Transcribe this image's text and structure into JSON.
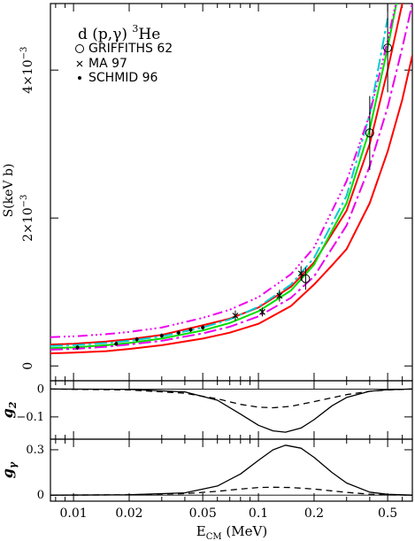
{
  "chart_data": [
    {
      "type": "line",
      "title": "d (p,γ) ³He",
      "title_parts": {
        "reaction": "d (p,γ)",
        "mass_number": "3",
        "nucleus": "He"
      },
      "ylabel": "S(keV b)",
      "yticks": [
        {
          "value": 0,
          "label": "0"
        },
        {
          "value": 0.002,
          "label": "2×10⁻³",
          "base": "2×10",
          "exp": "−3"
        },
        {
          "value": 0.004,
          "label": "4×10⁻³",
          "base": "4×10",
          "exp": "−3"
        }
      ],
      "xscale": "log",
      "xlim": [
        0.0075,
        0.68
      ],
      "ylim": [
        -0.0002,
        0.0049
      ],
      "legend_placement": "top-left",
      "legend": [
        {
          "marker": "circle",
          "label": "GRIFFITHS 62"
        },
        {
          "marker": "cross",
          "label": "MA 97"
        },
        {
          "marker": "dot",
          "label": "SCHMID 96"
        }
      ],
      "series": [
        {
          "style": "solid",
          "color": "#ff0000",
          "width": 2,
          "x": [
            0.0075,
            0.01,
            0.015,
            0.02,
            0.03,
            0.05,
            0.07,
            0.1,
            0.15,
            0.2,
            0.3,
            0.4,
            0.5,
            0.6,
            0.68
          ],
          "y": [
            0.00029,
            0.0003,
            0.00033,
            0.00036,
            0.00042,
            0.00055,
            0.00064,
            0.00079,
            0.00107,
            0.0014,
            0.0021,
            0.003,
            0.004,
            0.0049,
            0.0056
          ]
        },
        {
          "style": "solid",
          "color": "#ff0000",
          "width": 2,
          "x": [
            0.0075,
            0.01,
            0.015,
            0.02,
            0.03,
            0.05,
            0.07,
            0.1,
            0.15,
            0.2,
            0.25,
            0.3,
            0.4,
            0.5,
            0.6,
            0.68
          ],
          "y": [
            0.00017,
            0.00018,
            0.0002,
            0.00023,
            0.00028,
            0.00037,
            0.00045,
            0.00057,
            0.00081,
            0.0011,
            0.00136,
            0.00158,
            0.0022,
            0.0029,
            0.0036,
            0.0042
          ]
        },
        {
          "style": "solid",
          "color": "#00dd00",
          "width": 2,
          "x": [
            0.0075,
            0.01,
            0.015,
            0.02,
            0.03,
            0.05,
            0.07,
            0.1,
            0.15,
            0.2,
            0.3,
            0.4,
            0.5,
            0.6
          ],
          "y": [
            0.00024,
            0.00025,
            0.00028,
            0.00031,
            0.00037,
            0.00048,
            0.00058,
            0.00074,
            0.00102,
            0.00137,
            0.0022,
            0.0032,
            0.0043,
            0.0053
          ]
        },
        {
          "style": "dashdot",
          "color": "#00cccc",
          "width": 2,
          "x": [
            0.0075,
            0.01,
            0.015,
            0.02,
            0.03,
            0.05,
            0.07,
            0.1,
            0.15,
            0.2,
            0.3,
            0.4,
            0.5
          ],
          "y": [
            0.00027,
            0.00028,
            0.00031,
            0.00034,
            0.0004,
            0.00052,
            0.00063,
            0.0008,
            0.0011,
            0.00146,
            0.0023,
            0.0034,
            0.0047
          ]
        },
        {
          "style": "dashdot",
          "color": "#ee00ee",
          "width": 2,
          "x": [
            0.0075,
            0.01,
            0.015,
            0.02,
            0.03,
            0.05,
            0.07,
            0.1,
            0.15,
            0.2,
            0.3,
            0.4,
            0.5,
            0.6,
            0.68
          ],
          "y": [
            0.00022,
            0.00023,
            0.00026,
            0.00029,
            0.00034,
            0.00044,
            0.00053,
            0.00067,
            0.00092,
            0.00121,
            0.0019,
            0.0027,
            0.0035,
            0.0043,
            0.0049
          ]
        },
        {
          "style": "dotted-dash",
          "color": "#ee00ee",
          "width": 2,
          "x": [
            0.0075,
            0.01,
            0.015,
            0.02,
            0.03,
            0.05,
            0.07,
            0.1,
            0.15,
            0.2,
            0.3,
            0.4,
            0.5,
            0.6
          ],
          "y": [
            0.00039,
            0.0004,
            0.00043,
            0.00046,
            0.00052,
            0.00065,
            0.00076,
            0.00093,
            0.00124,
            0.0016,
            0.0025,
            0.0034,
            0.0044,
            0.0053
          ]
        }
      ],
      "points": {
        "griffiths": [
          {
            "x": 0.4,
            "y": 0.00315,
            "err": 0.0005
          },
          {
            "x": 0.5,
            "y": 0.0043,
            "err": 0.0006
          },
          {
            "x": 0.18,
            "y": 0.00118,
            "err": 0.00015
          }
        ],
        "ma": [
          {
            "x": 0.075,
            "y": 0.00068,
            "err": 7e-05
          },
          {
            "x": 0.105,
            "y": 0.00073,
            "err": 6e-05
          },
          {
            "x": 0.13,
            "y": 0.00095,
            "err": 8e-05
          },
          {
            "x": 0.17,
            "y": 0.00125,
            "err": 0.0001
          }
        ],
        "schmid": [
          {
            "x": 0.0105,
            "y": 0.00025,
            "err": 3e-05
          },
          {
            "x": 0.017,
            "y": 0.0003,
            "err": 3e-05
          },
          {
            "x": 0.022,
            "y": 0.00036,
            "err": 3e-05
          },
          {
            "x": 0.03,
            "y": 0.00041,
            "err": 3e-05
          },
          {
            "x": 0.037,
            "y": 0.00045,
            "err": 3e-05
          },
          {
            "x": 0.043,
            "y": 0.00049,
            "err": 3e-05
          },
          {
            "x": 0.05,
            "y": 0.00052,
            "err": 3e-05
          }
        ]
      }
    },
    {
      "type": "line",
      "ylabel": "g₂",
      "ylabel_parts": {
        "base": "g",
        "sub": "2"
      },
      "xscale": "log",
      "xlim": [
        0.0075,
        0.68
      ],
      "ylim": [
        -0.18,
        0.03
      ],
      "yticks": [
        {
          "value": 0,
          "label": "0"
        },
        {
          "value": -0.1,
          "label": "−0.1"
        }
      ],
      "series": [
        {
          "style": "solid",
          "color": "#000000",
          "x": [
            0.0075,
            0.02,
            0.04,
            0.06,
            0.08,
            0.1,
            0.12,
            0.14,
            0.17,
            0.2,
            0.25,
            0.3,
            0.4,
            0.5,
            0.68
          ],
          "y": [
            0,
            -0.001,
            -0.01,
            -0.04,
            -0.09,
            -0.13,
            -0.15,
            -0.155,
            -0.14,
            -0.11,
            -0.06,
            -0.03,
            -0.008,
            -0.002,
            0
          ]
        },
        {
          "style": "dashed",
          "color": "#000000",
          "x": [
            0.0075,
            0.02,
            0.04,
            0.06,
            0.08,
            0.1,
            0.12,
            0.15,
            0.2,
            0.3,
            0.4,
            0.5,
            0.68
          ],
          "y": [
            0,
            -0.003,
            -0.015,
            -0.035,
            -0.055,
            -0.065,
            -0.067,
            -0.062,
            -0.045,
            -0.02,
            -0.008,
            -0.003,
            0
          ]
        }
      ]
    },
    {
      "type": "line",
      "ylabel": "gγ",
      "ylabel_parts": {
        "base": "g",
        "sub": "γ"
      },
      "xscale": "log",
      "xlim": [
        0.0075,
        0.68
      ],
      "ylim": [
        -0.04,
        0.37
      ],
      "yticks": [
        {
          "value": 0,
          "label": "0"
        },
        {
          "value": 0.3,
          "label": "0.3"
        }
      ],
      "xlabel": "E_CM (MeV)",
      "xlabel_parts": {
        "base": "E",
        "sub": "CM",
        "unit": " (MeV)"
      },
      "xticks": [
        {
          "value": 0.01,
          "label": "0.01"
        },
        {
          "value": 0.02,
          "label": "0.02"
        },
        {
          "value": 0.05,
          "label": "0.05"
        },
        {
          "value": 0.1,
          "label": "0.1"
        },
        {
          "value": 0.2,
          "label": "0.2"
        },
        {
          "value": 0.5,
          "label": "0.5"
        }
      ],
      "series": [
        {
          "style": "solid",
          "color": "#000000",
          "x": [
            0.0075,
            0.02,
            0.04,
            0.06,
            0.08,
            0.1,
            0.12,
            0.14,
            0.17,
            0.2,
            0.25,
            0.3,
            0.4,
            0.5,
            0.68
          ],
          "y": [
            0,
            0.002,
            0.015,
            0.06,
            0.14,
            0.23,
            0.3,
            0.33,
            0.31,
            0.25,
            0.15,
            0.08,
            0.02,
            0.005,
            0
          ]
        },
        {
          "style": "dashed",
          "color": "#000000",
          "x": [
            0.0075,
            0.02,
            0.04,
            0.06,
            0.08,
            0.1,
            0.12,
            0.15,
            0.2,
            0.3,
            0.4,
            0.5,
            0.68
          ],
          "y": [
            0,
            0.002,
            0.01,
            0.025,
            0.04,
            0.05,
            0.052,
            0.05,
            0.04,
            0.018,
            0.006,
            0.002,
            0
          ]
        }
      ]
    }
  ]
}
